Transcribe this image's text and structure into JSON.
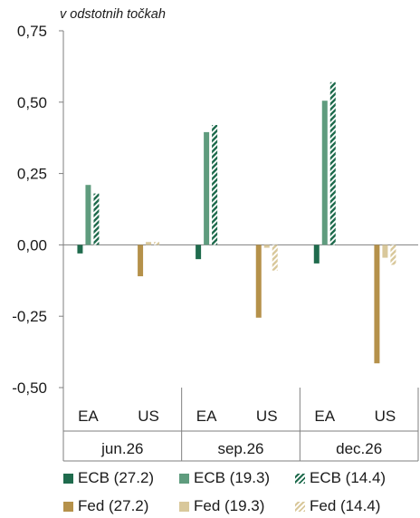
{
  "chart_data": {
    "type": "bar",
    "title": "",
    "unit_note": "v odstotnih točkah",
    "ylim": [
      -0.5,
      0.75
    ],
    "yticks": [
      "0,75",
      "0,50",
      "0,25",
      "0,00",
      "-0,25",
      "-0,50"
    ],
    "ytick_values": [
      0.75,
      0.5,
      0.25,
      0.0,
      -0.25,
      -0.5
    ],
    "groups": [
      "jun.26",
      "sep.26",
      "dec.26"
    ],
    "subcategories": [
      "EA",
      "US"
    ],
    "series": [
      {
        "name": "ECB (27.2)",
        "region": "EA",
        "color": "#1f6b4d",
        "pattern": "solid",
        "values": [
          -0.03,
          -0.05,
          -0.065
        ]
      },
      {
        "name": "ECB (19.3)",
        "region": "EA",
        "color": "#5f9c7e",
        "pattern": "solid",
        "values": [
          0.21,
          0.395,
          0.505
        ]
      },
      {
        "name": "ECB (14.4)",
        "region": "EA",
        "color": "#1f6b4d",
        "pattern": "dashed",
        "values": [
          0.18,
          0.42,
          0.57
        ]
      },
      {
        "name": "Fed (27.2)",
        "region": "US",
        "color": "#b5914a",
        "pattern": "solid",
        "values": [
          -0.11,
          -0.255,
          -0.415
        ]
      },
      {
        "name": "Fed (19.3)",
        "region": "US",
        "color": "#d9c89b",
        "pattern": "solid",
        "values": [
          0.01,
          -0.01,
          -0.045
        ]
      },
      {
        "name": "Fed (14.4)",
        "region": "US",
        "color": "#d9c89b",
        "pattern": "dashed",
        "values": [
          0.01,
          -0.09,
          -0.07
        ]
      }
    ],
    "grid": false,
    "legend": "bottom"
  }
}
